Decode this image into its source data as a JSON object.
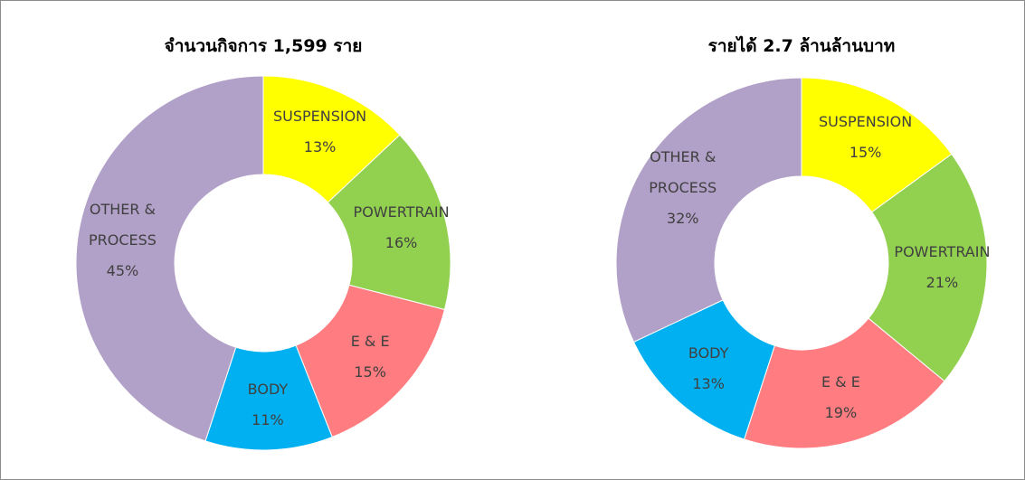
{
  "chart_data": [
    {
      "type": "pie",
      "title": "จำนวนกิจการ 1,599 ราย",
      "categories": [
        "SUSPENSION",
        "POWERTRAIN",
        "E & E",
        "BODY",
        "OTHER & PROCESS"
      ],
      "values": [
        13,
        16,
        15,
        11,
        45
      ],
      "value_labels": [
        "13%",
        "16%",
        "15%",
        "11%",
        "45%"
      ],
      "colors": [
        "#ffff00",
        "#92d050",
        "#ff7c80",
        "#00b0f0",
        "#b1a0c7"
      ]
    },
    {
      "type": "pie",
      "title": "รายได้ 2.7 ล้านล้านบาท",
      "categories": [
        "SUSPENSION",
        "POWERTRAIN",
        "E & E",
        "BODY",
        "OTHER & PROCESS"
      ],
      "values": [
        15,
        21,
        19,
        13,
        32
      ],
      "value_labels": [
        "15%",
        "21%",
        "19%",
        "13%",
        "32%"
      ],
      "colors": [
        "#ffff00",
        "#92d050",
        "#ff7c80",
        "#00b0f0",
        "#b1a0c7"
      ]
    }
  ]
}
